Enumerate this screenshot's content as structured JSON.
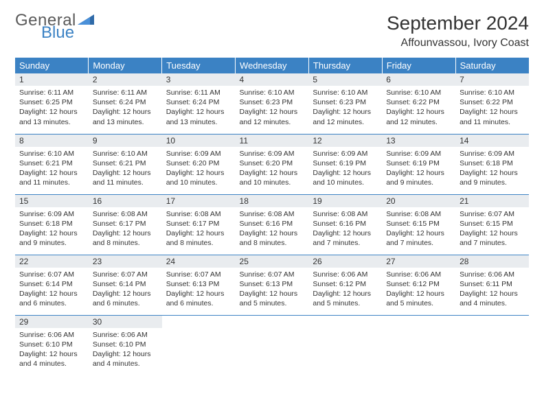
{
  "logo": {
    "text1": "General",
    "text2": "Blue",
    "color_gray": "#5a5a5a",
    "color_blue": "#3b82c4"
  },
  "title": "September 2024",
  "location": "Affounvassou, Ivory Coast",
  "header_bg": "#3b82c4",
  "daynum_bg": "#e9ecef",
  "border_color": "#3b82c4",
  "weekdays": [
    "Sunday",
    "Monday",
    "Tuesday",
    "Wednesday",
    "Thursday",
    "Friday",
    "Saturday"
  ],
  "grid": [
    [
      {
        "n": "1",
        "sr": "6:11 AM",
        "ss": "6:25 PM",
        "dl": "12 hours and 13 minutes."
      },
      {
        "n": "2",
        "sr": "6:11 AM",
        "ss": "6:24 PM",
        "dl": "12 hours and 13 minutes."
      },
      {
        "n": "3",
        "sr": "6:11 AM",
        "ss": "6:24 PM",
        "dl": "12 hours and 13 minutes."
      },
      {
        "n": "4",
        "sr": "6:10 AM",
        "ss": "6:23 PM",
        "dl": "12 hours and 12 minutes."
      },
      {
        "n": "5",
        "sr": "6:10 AM",
        "ss": "6:23 PM",
        "dl": "12 hours and 12 minutes."
      },
      {
        "n": "6",
        "sr": "6:10 AM",
        "ss": "6:22 PM",
        "dl": "12 hours and 12 minutes."
      },
      {
        "n": "7",
        "sr": "6:10 AM",
        "ss": "6:22 PM",
        "dl": "12 hours and 11 minutes."
      }
    ],
    [
      {
        "n": "8",
        "sr": "6:10 AM",
        "ss": "6:21 PM",
        "dl": "12 hours and 11 minutes."
      },
      {
        "n": "9",
        "sr": "6:10 AM",
        "ss": "6:21 PM",
        "dl": "12 hours and 11 minutes."
      },
      {
        "n": "10",
        "sr": "6:09 AM",
        "ss": "6:20 PM",
        "dl": "12 hours and 10 minutes."
      },
      {
        "n": "11",
        "sr": "6:09 AM",
        "ss": "6:20 PM",
        "dl": "12 hours and 10 minutes."
      },
      {
        "n": "12",
        "sr": "6:09 AM",
        "ss": "6:19 PM",
        "dl": "12 hours and 10 minutes."
      },
      {
        "n": "13",
        "sr": "6:09 AM",
        "ss": "6:19 PM",
        "dl": "12 hours and 9 minutes."
      },
      {
        "n": "14",
        "sr": "6:09 AM",
        "ss": "6:18 PM",
        "dl": "12 hours and 9 minutes."
      }
    ],
    [
      {
        "n": "15",
        "sr": "6:09 AM",
        "ss": "6:18 PM",
        "dl": "12 hours and 9 minutes."
      },
      {
        "n": "16",
        "sr": "6:08 AM",
        "ss": "6:17 PM",
        "dl": "12 hours and 8 minutes."
      },
      {
        "n": "17",
        "sr": "6:08 AM",
        "ss": "6:17 PM",
        "dl": "12 hours and 8 minutes."
      },
      {
        "n": "18",
        "sr": "6:08 AM",
        "ss": "6:16 PM",
        "dl": "12 hours and 8 minutes."
      },
      {
        "n": "19",
        "sr": "6:08 AM",
        "ss": "6:16 PM",
        "dl": "12 hours and 7 minutes."
      },
      {
        "n": "20",
        "sr": "6:08 AM",
        "ss": "6:15 PM",
        "dl": "12 hours and 7 minutes."
      },
      {
        "n": "21",
        "sr": "6:07 AM",
        "ss": "6:15 PM",
        "dl": "12 hours and 7 minutes."
      }
    ],
    [
      {
        "n": "22",
        "sr": "6:07 AM",
        "ss": "6:14 PM",
        "dl": "12 hours and 6 minutes."
      },
      {
        "n": "23",
        "sr": "6:07 AM",
        "ss": "6:14 PM",
        "dl": "12 hours and 6 minutes."
      },
      {
        "n": "24",
        "sr": "6:07 AM",
        "ss": "6:13 PM",
        "dl": "12 hours and 6 minutes."
      },
      {
        "n": "25",
        "sr": "6:07 AM",
        "ss": "6:13 PM",
        "dl": "12 hours and 5 minutes."
      },
      {
        "n": "26",
        "sr": "6:06 AM",
        "ss": "6:12 PM",
        "dl": "12 hours and 5 minutes."
      },
      {
        "n": "27",
        "sr": "6:06 AM",
        "ss": "6:12 PM",
        "dl": "12 hours and 5 minutes."
      },
      {
        "n": "28",
        "sr": "6:06 AM",
        "ss": "6:11 PM",
        "dl": "12 hours and 4 minutes."
      }
    ],
    [
      {
        "n": "29",
        "sr": "6:06 AM",
        "ss": "6:10 PM",
        "dl": "12 hours and 4 minutes."
      },
      {
        "n": "30",
        "sr": "6:06 AM",
        "ss": "6:10 PM",
        "dl": "12 hours and 4 minutes."
      },
      null,
      null,
      null,
      null,
      null
    ]
  ],
  "labels": {
    "sunrise": "Sunrise:",
    "sunset": "Sunset:",
    "daylight": "Daylight:"
  }
}
